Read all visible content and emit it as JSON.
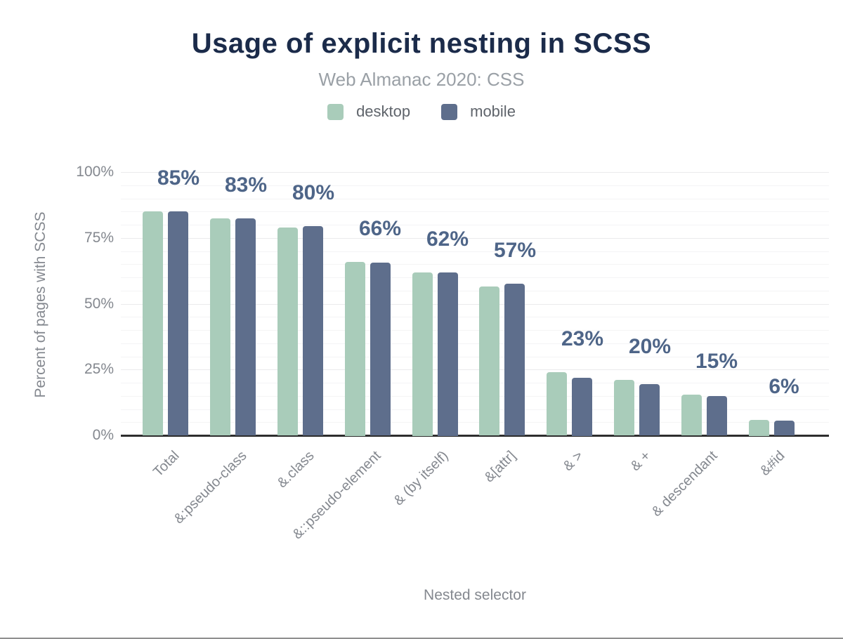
{
  "page": {
    "title": "Usage of explicit nesting in SCSS",
    "subtitle": "Web Almanac 2020: CSS"
  },
  "colors": {
    "desktop": "#a9ccba",
    "mobile": "#5e6e8c",
    "title_text": "#1b2b4a",
    "subtitle_text": "#9aa0a6",
    "axis_text": "#84888f",
    "data_label_text": "#4e6588",
    "axis_line": "#2e2e2e",
    "gridline_minor": "#f4f4f5",
    "gridline_major": "#eaeaec"
  },
  "chart_data": {
    "type": "bar",
    "title": "Usage of explicit nesting in SCSS",
    "subtitle": "Web Almanac 2020: CSS",
    "xlabel": "Nested selector",
    "ylabel": "Percent of pages with SCSS",
    "ylim": [
      0,
      100
    ],
    "yticks": [
      {
        "value": 0,
        "label": "0%"
      },
      {
        "value": 25,
        "label": "25%"
      },
      {
        "value": 50,
        "label": "50%"
      },
      {
        "value": 75,
        "label": "75%"
      },
      {
        "value": 100,
        "label": "100%"
      }
    ],
    "grid": "horizontal minor every 5%, major every 25%",
    "legend_position": "top",
    "categories": [
      "Total",
      "&:pseudo-class",
      "&.class",
      "&::pseudo-element",
      "& (by itself)",
      "&[attr]",
      "& >",
      "& +",
      "& descendant",
      "&#id"
    ],
    "series": [
      {
        "name": "desktop",
        "color": "#a9ccba",
        "values": [
          85,
          82.5,
          79,
          66,
          62,
          56.5,
          24,
          21,
          15.5,
          6
        ]
      },
      {
        "name": "mobile",
        "color": "#5e6e8c",
        "values": [
          85,
          82.5,
          79.5,
          65.5,
          62,
          57.5,
          22,
          19.5,
          15,
          5.5
        ]
      }
    ],
    "bar_labels": [
      "85%",
      "83%",
      "80%",
      "66%",
      "62%",
      "57%",
      "23%",
      "20%",
      "15%",
      "6%"
    ]
  }
}
